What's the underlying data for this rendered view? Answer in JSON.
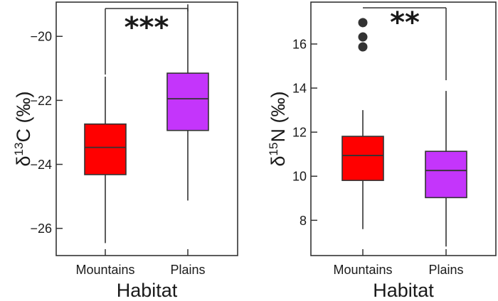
{
  "chart_data": [
    {
      "type": "box",
      "xlabel": "Habitat",
      "ylabel_main": "δ",
      "ylabel_sup": "13",
      "ylabel_rest": "C (‰)",
      "ylim": [
        -26.85,
        -18.93
      ],
      "yticks": [
        -20,
        -22,
        -24,
        -26
      ],
      "ytick_labels": [
        "−20",
        "−22",
        "−24",
        "−26"
      ],
      "categories": [
        "Mountains",
        "Plains"
      ],
      "boxes": [
        {
          "name": "Mountains",
          "color": "#ff0000",
          "whisker_low": -26.46,
          "q1": -24.32,
          "median": -23.47,
          "q3": -22.74,
          "whisker_high": -21.26,
          "outliers": []
        },
        {
          "name": "Plains",
          "color": "#c435fb",
          "whisker_low": -25.13,
          "q1": -22.94,
          "median": -21.95,
          "q3": -21.15,
          "whisker_high": -19.0,
          "outliers": []
        }
      ],
      "significance": "***"
    },
    {
      "type": "box",
      "xlabel": "Habitat",
      "ylabel_main": "δ",
      "ylabel_sup": "15",
      "ylabel_rest": "N (‰)",
      "ylim": [
        6.4,
        17.9
      ],
      "yticks": [
        8,
        10,
        12,
        14,
        16
      ],
      "ytick_labels": [
        "8",
        "10",
        "12",
        "14",
        "16"
      ],
      "categories": [
        "Mountains",
        "Plains"
      ],
      "boxes": [
        {
          "name": "Mountains",
          "color": "#ff0000",
          "whisker_low": 7.6,
          "q1": 9.81,
          "median": 10.94,
          "q3": 11.81,
          "whisker_high": 13.0,
          "outliers": [
            15.87,
            16.32,
            16.97
          ]
        },
        {
          "name": "Plains",
          "color": "#c435fb",
          "whisker_low": 6.81,
          "q1": 9.03,
          "median": 10.26,
          "q3": 11.13,
          "whisker_high": 13.87,
          "outliers": []
        }
      ],
      "significance": "**"
    }
  ]
}
